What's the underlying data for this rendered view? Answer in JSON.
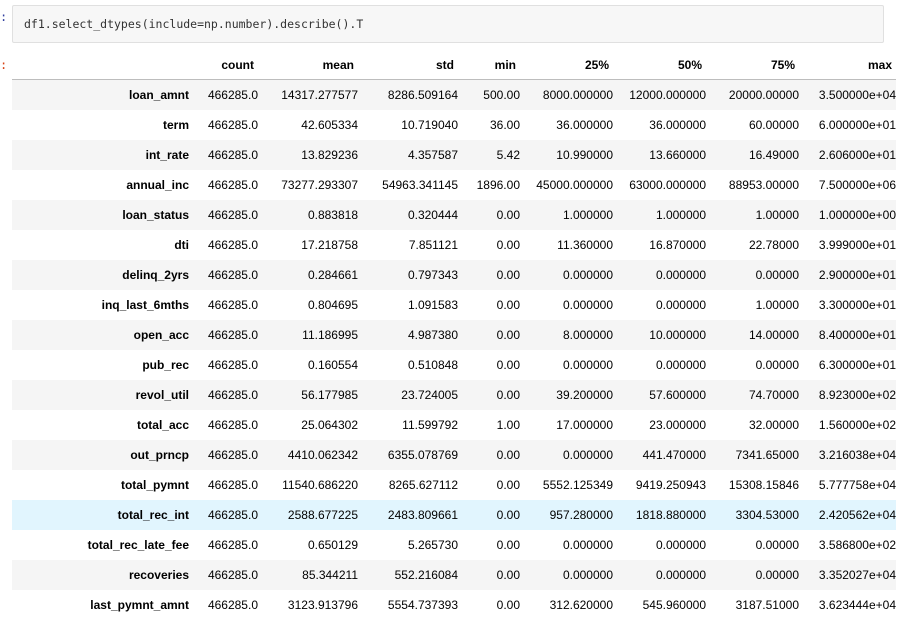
{
  "cell": {
    "in_prompt": ":",
    "out_prompt": ":",
    "code": "df1.select_dtypes(include=np.number).describe().T"
  },
  "table": {
    "columns": [
      "count",
      "mean",
      "std",
      "min",
      "25%",
      "50%",
      "75%",
      "max"
    ],
    "rows": [
      {
        "index": "loan_amnt",
        "values": [
          "466285.0",
          "14317.277577",
          "8286.509164",
          "500.00",
          "8000.000000",
          "12000.000000",
          "20000.00000",
          "3.500000e+04"
        ]
      },
      {
        "index": "term",
        "values": [
          "466285.0",
          "42.605334",
          "10.719040",
          "36.00",
          "36.000000",
          "36.000000",
          "60.00000",
          "6.000000e+01"
        ]
      },
      {
        "index": "int_rate",
        "values": [
          "466285.0",
          "13.829236",
          "4.357587",
          "5.42",
          "10.990000",
          "13.660000",
          "16.49000",
          "2.606000e+01"
        ]
      },
      {
        "index": "annual_inc",
        "values": [
          "466285.0",
          "73277.293307",
          "54963.341145",
          "1896.00",
          "45000.000000",
          "63000.000000",
          "88953.00000",
          "7.500000e+06"
        ]
      },
      {
        "index": "loan_status",
        "values": [
          "466285.0",
          "0.883818",
          "0.320444",
          "0.00",
          "1.000000",
          "1.000000",
          "1.00000",
          "1.000000e+00"
        ]
      },
      {
        "index": "dti",
        "values": [
          "466285.0",
          "17.218758",
          "7.851121",
          "0.00",
          "11.360000",
          "16.870000",
          "22.78000",
          "3.999000e+01"
        ]
      },
      {
        "index": "delinq_2yrs",
        "values": [
          "466285.0",
          "0.284661",
          "0.797343",
          "0.00",
          "0.000000",
          "0.000000",
          "0.00000",
          "2.900000e+01"
        ]
      },
      {
        "index": "inq_last_6mths",
        "values": [
          "466285.0",
          "0.804695",
          "1.091583",
          "0.00",
          "0.000000",
          "0.000000",
          "1.00000",
          "3.300000e+01"
        ]
      },
      {
        "index": "open_acc",
        "values": [
          "466285.0",
          "11.186995",
          "4.987380",
          "0.00",
          "8.000000",
          "10.000000",
          "14.00000",
          "8.400000e+01"
        ]
      },
      {
        "index": "pub_rec",
        "values": [
          "466285.0",
          "0.160554",
          "0.510848",
          "0.00",
          "0.000000",
          "0.000000",
          "0.00000",
          "6.300000e+01"
        ]
      },
      {
        "index": "revol_util",
        "values": [
          "466285.0",
          "56.177985",
          "23.724005",
          "0.00",
          "39.200000",
          "57.600000",
          "74.70000",
          "8.923000e+02"
        ]
      },
      {
        "index": "total_acc",
        "values": [
          "466285.0",
          "25.064302",
          "11.599792",
          "1.00",
          "17.000000",
          "23.000000",
          "32.00000",
          "1.560000e+02"
        ]
      },
      {
        "index": "out_prncp",
        "values": [
          "466285.0",
          "4410.062342",
          "6355.078769",
          "0.00",
          "0.000000",
          "441.470000",
          "7341.65000",
          "3.216038e+04"
        ]
      },
      {
        "index": "total_pymnt",
        "values": [
          "466285.0",
          "11540.686220",
          "8265.627112",
          "0.00",
          "5552.125349",
          "9419.250943",
          "15308.15846",
          "5.777758e+04"
        ]
      },
      {
        "index": "total_rec_int",
        "values": [
          "466285.0",
          "2588.677225",
          "2483.809661",
          "0.00",
          "957.280000",
          "1818.880000",
          "3304.53000",
          "2.420562e+04"
        ]
      },
      {
        "index": "total_rec_late_fee",
        "values": [
          "466285.0",
          "0.650129",
          "5.265730",
          "0.00",
          "0.000000",
          "0.000000",
          "0.00000",
          "3.586800e+02"
        ]
      },
      {
        "index": "recoveries",
        "values": [
          "466285.0",
          "85.344211",
          "552.216084",
          "0.00",
          "0.000000",
          "0.000000",
          "0.00000",
          "3.352027e+04"
        ]
      },
      {
        "index": "last_pymnt_amnt",
        "values": [
          "466285.0",
          "3123.913796",
          "5554.737393",
          "0.00",
          "312.620000",
          "545.960000",
          "3187.51000",
          "3.623444e+04"
        ]
      }
    ],
    "hovered_row": "total_rec_int"
  },
  "colors": {
    "hover_row": "#e1f5fe",
    "stripe_row": "#f5f5f5",
    "in_prompt": "#303f9f",
    "out_prompt": "#d84315"
  }
}
